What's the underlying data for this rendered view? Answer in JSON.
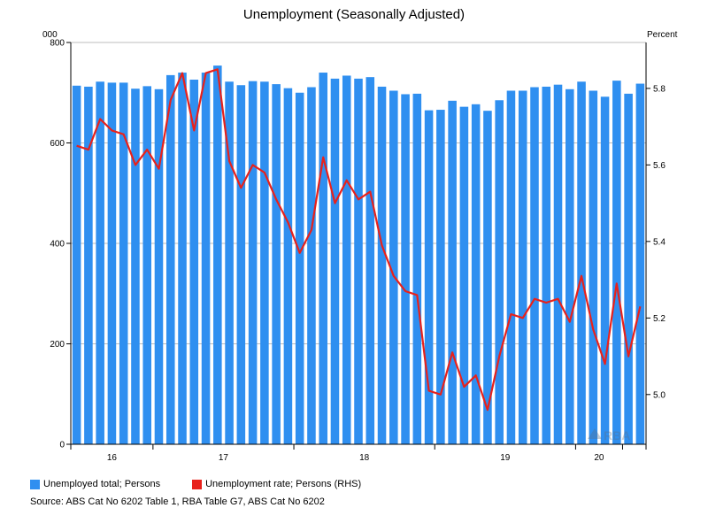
{
  "chart_data": {
    "type": "bar",
    "title": "Unemployment (Seasonally Adjusted)",
    "left_axis_unit": "000",
    "right_axis_unit": "Percent",
    "x_ticks": [
      "16",
      "17",
      "18",
      "19",
      "20"
    ],
    "left_ticks": [
      "0",
      "200",
      "400",
      "600",
      "800"
    ],
    "right_ticks": [
      "5.0",
      "5.2",
      "5.4",
      "5.6",
      "5.8"
    ],
    "ylim_left": [
      0,
      800
    ],
    "ylim_right": [
      4.87,
      5.92
    ],
    "grid": "horizontal",
    "legend_position": "bottom-left",
    "series": [
      {
        "name": "Unemployed total; Persons",
        "type": "bar",
        "axis": "left",
        "color": "#2f8ff0",
        "values": [
          714,
          712,
          722,
          720,
          720,
          708,
          713,
          707,
          735,
          740,
          726,
          740,
          754,
          722,
          715,
          723,
          722,
          717,
          709,
          700,
          711,
          740,
          728,
          734,
          728,
          731,
          712,
          704,
          697,
          698,
          665,
          666,
          684,
          672,
          677,
          664,
          685,
          704,
          704,
          711,
          712,
          716,
          707,
          722,
          704,
          692,
          724,
          698,
          718
        ]
      },
      {
        "name": "Unemployment rate; Persons (RHS)",
        "type": "line",
        "axis": "right",
        "color": "#e8211b",
        "values": [
          5.65,
          5.64,
          5.72,
          5.69,
          5.68,
          5.6,
          5.64,
          5.59,
          5.77,
          5.84,
          5.69,
          5.84,
          5.85,
          5.61,
          5.54,
          5.6,
          5.58,
          5.51,
          5.45,
          5.37,
          5.43,
          5.62,
          5.5,
          5.56,
          5.51,
          5.53,
          5.39,
          5.31,
          5.27,
          5.26,
          5.01,
          5.0,
          5.11,
          5.02,
          5.05,
          4.96,
          5.1,
          5.21,
          5.2,
          5.25,
          5.24,
          5.25,
          5.19,
          5.31,
          5.17,
          5.08,
          5.29,
          5.1,
          5.23
        ]
      }
    ]
  },
  "source": "Source: ABS Cat No 6202 Table 1, RBA Table G7, ABS Cat No 6202",
  "watermark": "RBA"
}
